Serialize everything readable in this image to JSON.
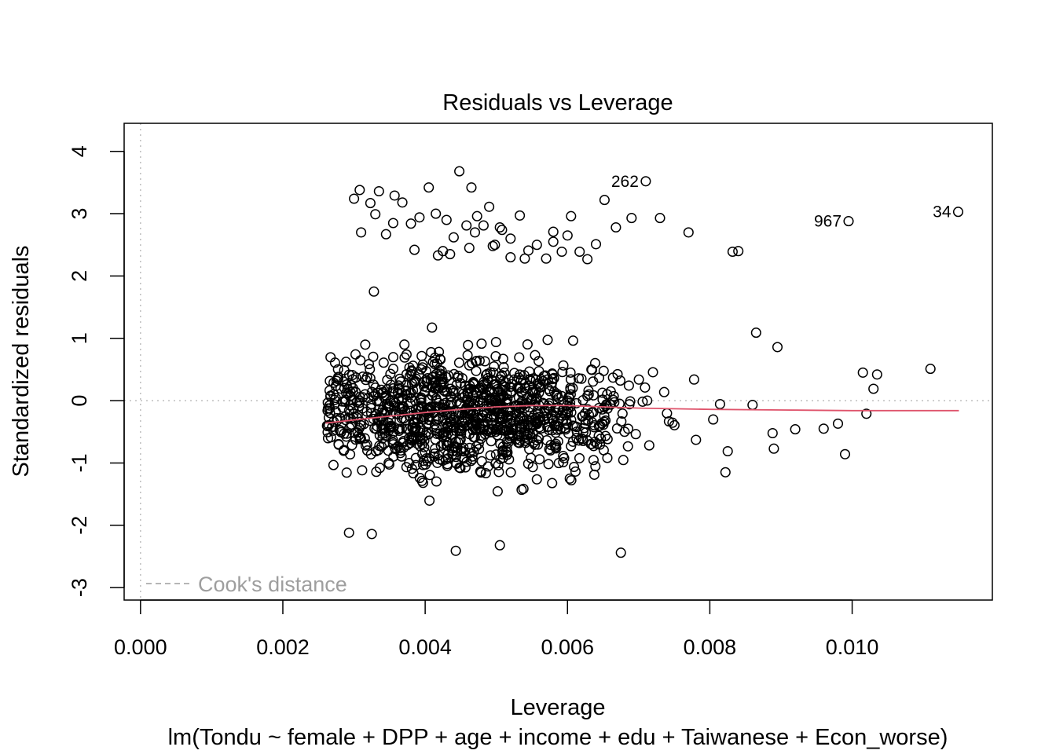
{
  "chart_data": {
    "type": "scatter",
    "title": "Residuals vs Leverage",
    "xlabel": "Leverage",
    "subtitle": "lm(Tondu ~ female + DPP + age + income + edu + Taiwanese + Econ_worse)",
    "ylabel": "Standardized residuals",
    "xlim": [
      -0.00023,
      0.01197
    ],
    "ylim": [
      -3.2,
      4.45
    ],
    "x_ticks": [
      0.0,
      0.002,
      0.004,
      0.006,
      0.008,
      0.01
    ],
    "x_tick_labels": [
      "0.000",
      "0.002",
      "0.004",
      "0.006",
      "0.008",
      "0.010"
    ],
    "y_ticks": [
      -3,
      -2,
      -1,
      0,
      1,
      2,
      3,
      4
    ],
    "y_tick_labels": [
      "-3",
      "-2",
      "-1",
      "0",
      "1",
      "2",
      "3",
      "4"
    ],
    "legend": {
      "position": "bottom-left",
      "label": "Cook's distance",
      "line_style": "dashed",
      "color": "#9e9e9e"
    },
    "reference_lines": {
      "horizontal_y": 0,
      "vertical_x": 0,
      "style": "dotted",
      "color": "#bebebe"
    },
    "smooth_color": "#df536b",
    "point_color": "#000000",
    "smooth": {
      "x": [
        0.0026,
        0.003,
        0.0035,
        0.004,
        0.0045,
        0.005,
        0.0055,
        0.006,
        0.0065,
        0.007,
        0.008,
        0.009,
        0.01,
        0.011,
        0.0115
      ],
      "y": [
        -0.36,
        -0.31,
        -0.25,
        -0.19,
        -0.14,
        -0.1,
        -0.08,
        -0.08,
        -0.1,
        -0.12,
        -0.14,
        -0.15,
        -0.16,
        -0.16,
        -0.16
      ]
    },
    "labeled_points": [
      {
        "label": "262",
        "x": 0.0071,
        "y": 3.52
      },
      {
        "label": "967",
        "x": 0.00995,
        "y": 2.88
      },
      {
        "label": "34",
        "x": 0.01149,
        "y": 3.03
      }
    ],
    "upper_points": {
      "x": [
        0.003,
        0.0031,
        0.00323,
        0.00335,
        0.00345,
        0.00357,
        0.00368,
        0.0038,
        0.00392,
        0.00405,
        0.00415,
        0.00425,
        0.00435,
        0.00448,
        0.00458,
        0.00465,
        0.00473,
        0.00482,
        0.0049,
        0.00498,
        0.00508,
        0.0052,
        0.00533,
        0.00545,
        0.00557,
        0.0057,
        0.0058,
        0.00592,
        0.00605,
        0.00617,
        0.00628,
        0.0064,
        0.00652,
        0.00668,
        0.0069,
        0.0073,
        0.0077,
        0.00832,
        0.0084,
        0.00308,
        0.00355,
        0.00418,
        0.00462,
        0.0052,
        0.0047,
        0.0058,
        0.0043,
        0.00505,
        0.006,
        0.0054,
        0.00385,
        0.00495,
        0.0044,
        0.0033
      ],
      "y": [
        3.24,
        2.7,
        3.17,
        3.36,
        2.67,
        3.29,
        3.18,
        2.84,
        2.94,
        3.42,
        3.0,
        2.4,
        2.35,
        3.68,
        2.81,
        3.42,
        2.96,
        2.81,
        3.11,
        2.5,
        2.74,
        2.3,
        2.97,
        2.41,
        2.5,
        2.28,
        2.71,
        2.39,
        2.96,
        2.39,
        2.27,
        2.51,
        3.22,
        2.78,
        2.93,
        2.93,
        2.7,
        2.39,
        2.4,
        3.38,
        2.85,
        2.33,
        2.45,
        2.6,
        2.7,
        2.55,
        2.9,
        2.78,
        2.65,
        2.28,
        2.42,
        2.48,
        2.62,
        2.99
      ]
    },
    "ymean_points": [
      {
        "x": 0.00328,
        "y": 1.75
      },
      {
        "x": 0.0111,
        "y": 0.51
      },
      {
        "x": 0.01035,
        "y": 0.42
      },
      {
        "x": 0.01015,
        "y": 0.45
      },
      {
        "x": 0.0103,
        "y": 0.19
      },
      {
        "x": 0.0102,
        "y": -0.21
      },
      {
        "x": 0.0099,
        "y": -0.86
      },
      {
        "x": 0.0098,
        "y": -0.37
      },
      {
        "x": 0.0096,
        "y": -0.45
      },
      {
        "x": 0.0092,
        "y": -0.46
      },
      {
        "x": 0.00895,
        "y": 0.86
      },
      {
        "x": 0.00865,
        "y": 1.09
      },
      {
        "x": 0.0089,
        "y": -0.77
      },
      {
        "x": 0.0086,
        "y": -0.07
      },
      {
        "x": 0.00675,
        "y": -2.44
      },
      {
        "x": 0.00443,
        "y": -2.41
      },
      {
        "x": 0.00293,
        "y": -2.12
      },
      {
        "x": 0.00325,
        "y": -2.14
      },
      {
        "x": 0.00505,
        "y": -2.32
      },
      {
        "x": 0.00822,
        "y": -1.15
      }
    ],
    "cloud": {
      "n": 1150,
      "x_center": 0.0046,
      "x_sd": 0.0011,
      "x_min": 0.0026,
      "x_max": 0.009,
      "y_min": -2.1,
      "y_max": 1.45
    }
  }
}
